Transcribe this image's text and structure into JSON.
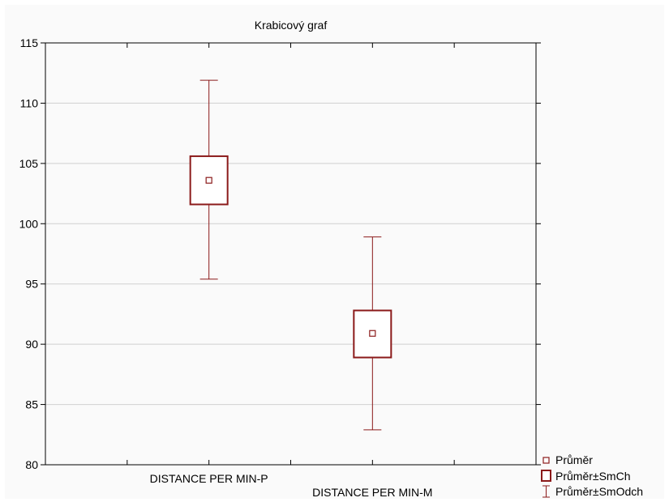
{
  "chart_data": {
    "type": "box",
    "title": "Krabicový graf",
    "xlabel": "",
    "ylabel": "",
    "ylim": [
      80,
      115
    ],
    "yticks": [
      80,
      85,
      90,
      95,
      100,
      105,
      110,
      115
    ],
    "grid": true,
    "categories": [
      "DISTANCE PER MIN-P",
      "DISTANCE PER MIN-M"
    ],
    "boxes": [
      {
        "mean": 103.6,
        "box_low": 101.6,
        "box_high": 105.6,
        "whisker_low": 95.4,
        "whisker_high": 111.9
      },
      {
        "mean": 90.9,
        "box_low": 88.9,
        "box_high": 92.8,
        "whisker_low": 82.9,
        "whisker_high": 98.9
      }
    ],
    "legend": {
      "placement": "bottom-right",
      "entries": [
        "Průměr",
        "Průměr±SmCh",
        "Průměr±SmOdch"
      ]
    },
    "colors": {
      "series": "#8b1a1a",
      "grid": "#d0d0d0",
      "axis": "#000000"
    }
  }
}
